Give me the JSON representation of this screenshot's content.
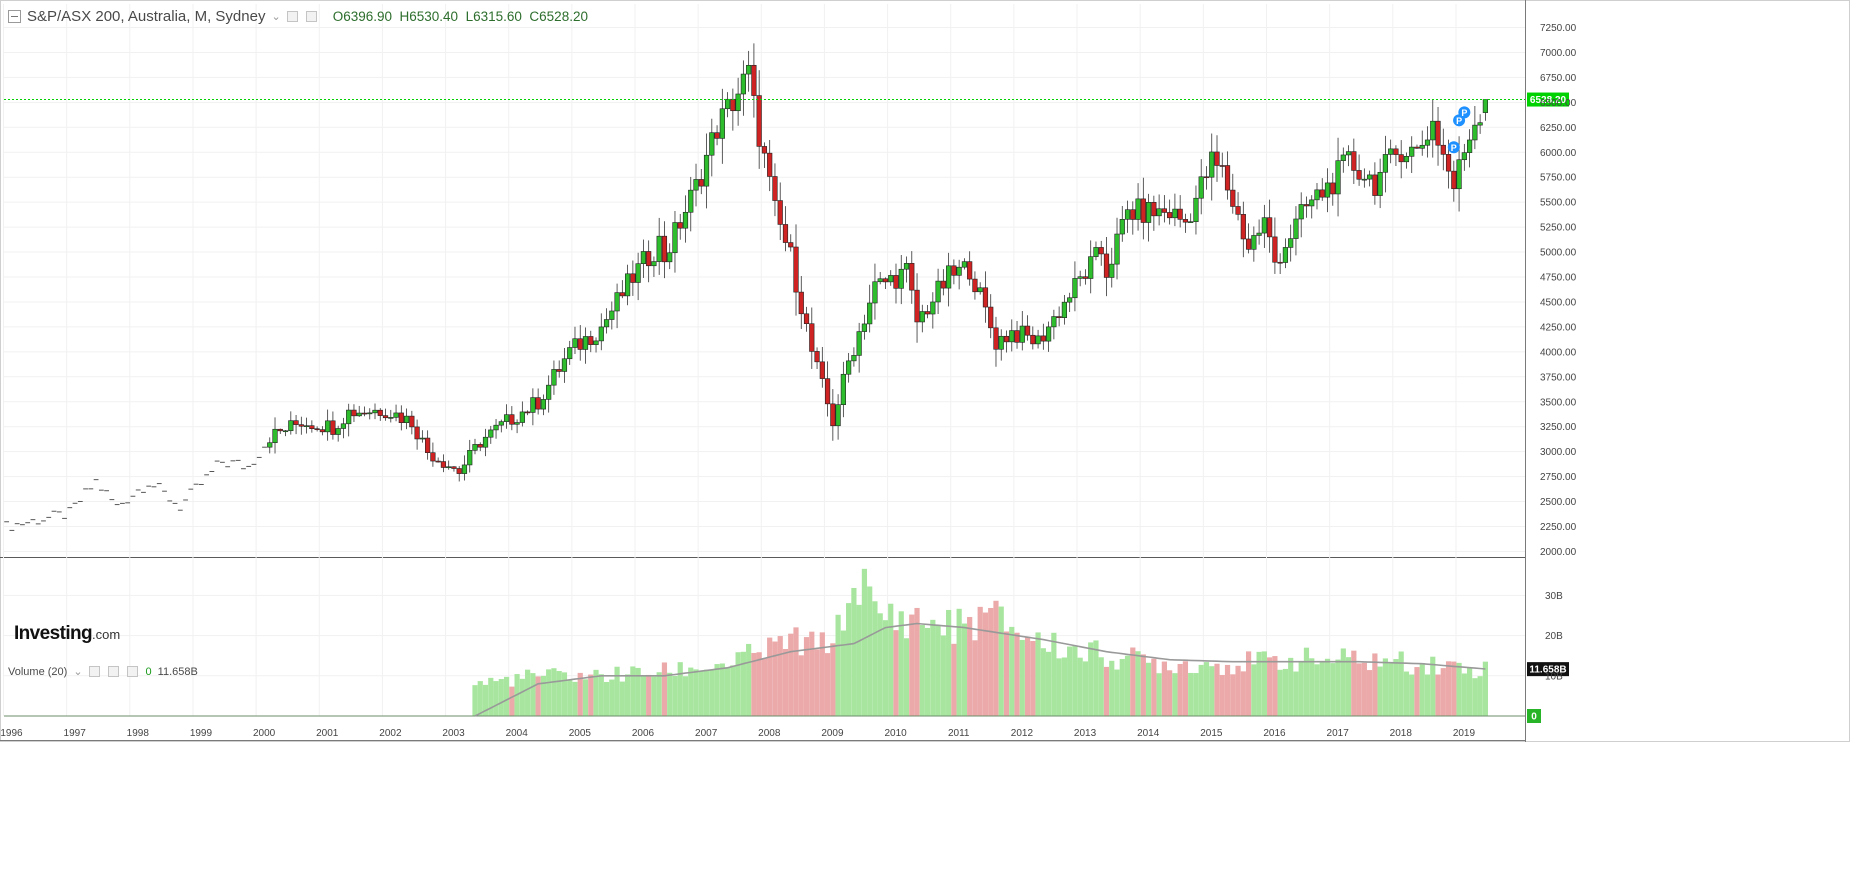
{
  "legend": {
    "symbol": "S&P/ASX 200, Australia, M, Sydney",
    "open": "O6396.90",
    "high": "H6530.40",
    "low": "L6315.60",
    "close": "C6528.20"
  },
  "volume_legend": {
    "label": "Volume (20)",
    "first_value": "0",
    "second_value": "11.658B"
  },
  "brand": {
    "name": "Investing",
    "suffix": ".com"
  },
  "last_price_tag": "6528.20",
  "volume_last_tag": "11.658B",
  "volume_zero_tag": "0",
  "colors": {
    "up": "#2dbd2d",
    "down": "#cf2222",
    "volume_up": "#a8e6a0",
    "volume_down": "#eba9a9",
    "last_price": "#00d100",
    "ma_line": "#999999",
    "marker": "#1e90ff"
  },
  "chart_data": [
    {
      "type": "candlestick",
      "x_type": "date (monthly)",
      "x_tick_labels": [
        "1996",
        "1997",
        "1998",
        "1999",
        "2000",
        "2001",
        "2002",
        "2003",
        "2004",
        "2005",
        "2006",
        "2007",
        "2008",
        "2009",
        "2010",
        "2011",
        "2012",
        "2013",
        "2014",
        "2015",
        "2016",
        "2017",
        "2018",
        "2019"
      ],
      "y_tick_labels": [
        "7250.00",
        "7000.00",
        "6750.00",
        "6500.00",
        "6250.00",
        "6000.00",
        "5750.00",
        "5500.00",
        "5250.00",
        "5000.00",
        "4750.00",
        "4500.00",
        "4250.00",
        "4000.00",
        "3750.00",
        "3500.00",
        "3250.00",
        "3000.00",
        "2750.00",
        "2500.00",
        "2250.00",
        "2000.00"
      ],
      "ylim": [
        1800,
        7400
      ],
      "last_price": 6528.2,
      "grid": true,
      "anchors": [
        [
          "1996-01",
          2250
        ],
        [
          "1997-01",
          2380
        ],
        [
          "1997-06",
          2700
        ],
        [
          "1997-10",
          2450
        ],
        [
          "1998-04",
          2700
        ],
        [
          "1998-10",
          2450
        ],
        [
          "1999-06",
          2900
        ],
        [
          "1999-11",
          2850
        ],
        [
          "2000-03",
          3150
        ],
        [
          "2000-09",
          3300
        ],
        [
          "2001-03",
          3250
        ],
        [
          "2001-06",
          3400
        ],
        [
          "2002-01",
          3420
        ],
        [
          "2002-06",
          3300
        ],
        [
          "2002-09",
          3000
        ],
        [
          "2003-03",
          2800
        ],
        [
          "2003-07",
          3100
        ],
        [
          "2003-12",
          3300
        ],
        [
          "2004-06",
          3500
        ],
        [
          "2004-12",
          4000
        ],
        [
          "2005-06",
          4250
        ],
        [
          "2005-12",
          4750
        ],
        [
          "2006-05",
          5100
        ],
        [
          "2006-06",
          4950
        ],
        [
          "2006-12",
          5650
        ],
        [
          "2007-04",
          6250
        ],
        [
          "2007-10",
          6780
        ],
        [
          "2007-11",
          6450
        ],
        [
          "2008-03",
          5400
        ],
        [
          "2008-06",
          4950
        ],
        [
          "2008-10",
          4000
        ],
        [
          "2009-02",
          3300
        ],
        [
          "2009-05",
          3900
        ],
        [
          "2009-10",
          4650
        ],
        [
          "2010-04",
          4800
        ],
        [
          "2010-06",
          4300
        ],
        [
          "2010-12",
          4750
        ],
        [
          "2011-04",
          4850
        ],
        [
          "2011-09",
          4100
        ],
        [
          "2011-12",
          4200
        ],
        [
          "2012-05",
          4100
        ],
        [
          "2012-12",
          4650
        ],
        [
          "2013-05",
          5000
        ],
        [
          "2013-06",
          4800
        ],
        [
          "2013-10",
          5400
        ],
        [
          "2014-06",
          5400
        ],
        [
          "2014-09",
          5300
        ],
        [
          "2015-02",
          5900
        ],
        [
          "2015-04",
          5800
        ],
        [
          "2015-09",
          5050
        ],
        [
          "2015-12",
          5300
        ],
        [
          "2016-02",
          4900
        ],
        [
          "2016-08",
          5450
        ],
        [
          "2016-12",
          5650
        ],
        [
          "2017-04",
          5900
        ],
        [
          "2017-09",
          5700
        ],
        [
          "2018-02",
          6050
        ],
        [
          "2018-05",
          6000
        ],
        [
          "2018-08",
          6300
        ],
        [
          "2018-12",
          5650
        ],
        [
          "2019-03",
          6200
        ],
        [
          "2019-06",
          6528.2
        ]
      ],
      "last_candle": {
        "open": 6396.9,
        "high": 6530.4,
        "low": 6315.6,
        "close": 6528.2
      },
      "markers": [
        {
          "label": "P",
          "x": "2018-12",
          "y": 6050
        },
        {
          "label": "P",
          "x": "2019-01",
          "y": 6320
        },
        {
          "label": "P",
          "x": "2019-02",
          "y": 6400
        }
      ]
    },
    {
      "type": "bar",
      "series_name": "Volume (20)",
      "x_type": "date (monthly)",
      "y_tick_labels": [
        "30B",
        "20B",
        "10B"
      ],
      "ylim": [
        0,
        36
      ],
      "volume_start": "2003-06",
      "volume_anchors": [
        [
          "2003-06",
          8
        ],
        [
          "2004-06",
          10
        ],
        [
          "2005-06",
          10
        ],
        [
          "2006-06",
          11
        ],
        [
          "2007-06",
          13
        ],
        [
          "2008-03",
          17
        ],
        [
          "2008-06",
          19
        ],
        [
          "2008-11",
          17
        ],
        [
          "2009-03",
          21
        ],
        [
          "2009-07",
          35
        ],
        [
          "2009-10",
          25
        ],
        [
          "2010-06",
          24
        ],
        [
          "2011-01",
          22
        ],
        [
          "2011-08",
          25
        ],
        [
          "2012-06",
          18
        ],
        [
          "2013-06",
          15
        ],
        [
          "2014-06",
          13
        ],
        [
          "2015-06",
          13
        ],
        [
          "2016-06",
          14
        ],
        [
          "2017-06",
          14
        ],
        [
          "2018-06",
          13
        ],
        [
          "2019-06",
          11.658
        ]
      ],
      "ma_anchors": [
        [
          "2003-06",
          0
        ],
        [
          "2004-06",
          8
        ],
        [
          "2005-06",
          10
        ],
        [
          "2006-06",
          10
        ],
        [
          "2007-06",
          12
        ],
        [
          "2008-06",
          16
        ],
        [
          "2009-06",
          18
        ],
        [
          "2009-12",
          22
        ],
        [
          "2010-06",
          23
        ],
        [
          "2011-03",
          22
        ],
        [
          "2012-06",
          19
        ],
        [
          "2013-06",
          16
        ],
        [
          "2014-06",
          14
        ],
        [
          "2015-06",
          13.5
        ],
        [
          "2016-06",
          13.5
        ],
        [
          "2017-06",
          13.5
        ],
        [
          "2018-06",
          13
        ],
        [
          "2019-06",
          11.7
        ]
      ]
    }
  ]
}
